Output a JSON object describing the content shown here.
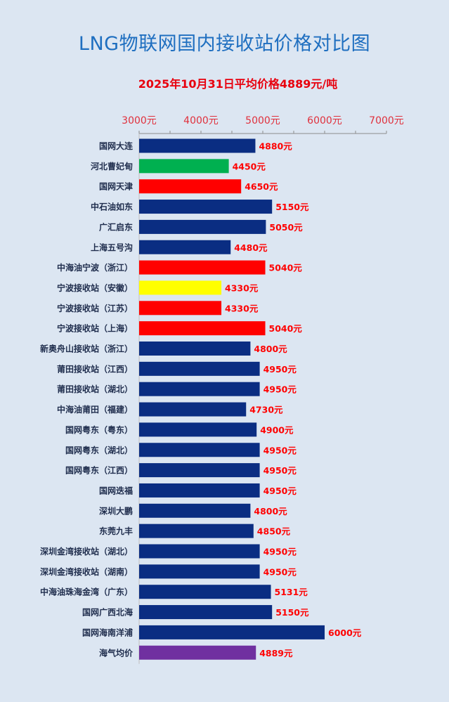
{
  "chart_data": {
    "type": "bar",
    "orientation": "horizontal",
    "title": "LNG物联网国内接收站价格对比图",
    "subtitle": "2025年10月31日平均价格4889元/吨",
    "xlim": [
      3000,
      7000
    ],
    "tick_labels": [
      "3000元",
      "4000元",
      "5000元",
      "6000元",
      "7000元"
    ],
    "ticks": [
      3000,
      4000,
      5000,
      6000,
      7000
    ],
    "value_suffix": "元",
    "categories": [
      "国网大连",
      "河北曹妃甸",
      "国网天津",
      "中石油如东",
      "广汇启东",
      "上海五号沟",
      "中海油宁波（浙江）",
      "宁波接收站（安徽）",
      "宁波接收站（江苏）",
      "宁波接收站（上海）",
      "新奥舟山接收站（浙江）",
      "莆田接收站（江西）",
      "莆田接收站（湖北）",
      "中海油莆田（福建）",
      "国网粤东（粤东）",
      "国网粤东（湖北）",
      "国网粤东（江西）",
      "国网迭福",
      "深圳大鹏",
      "东莞九丰",
      "深圳金湾接收站（湖北）",
      "深圳金湾接收站（湖南）",
      "中海油珠海金湾（广东）",
      "国网广西北海",
      "国网海南洋浦",
      "海气均价"
    ],
    "values": [
      4880,
      4450,
      4650,
      5150,
      5050,
      4480,
      5040,
      4330,
      4330,
      5040,
      4800,
      4950,
      4950,
      4730,
      4900,
      4950,
      4950,
      4950,
      4800,
      4850,
      4950,
      4950,
      5131,
      5150,
      6000,
      4889
    ],
    "bar_colors": [
      "#0a2d82",
      "#00b050",
      "#ff0000",
      "#0a2d82",
      "#0a2d82",
      "#0a2d82",
      "#ff0000",
      "#ffff00",
      "#ff0000",
      "#ff0000",
      "#0a2d82",
      "#0a2d82",
      "#0a2d82",
      "#0a2d82",
      "#0a2d82",
      "#0a2d82",
      "#0a2d82",
      "#0a2d82",
      "#0a2d82",
      "#0a2d82",
      "#0a2d82",
      "#0a2d82",
      "#0a2d82",
      "#0a2d82",
      "#0a2d82",
      "#7030a0"
    ],
    "label_color": "#ff0000",
    "category_label_color": "#1f2d4d",
    "tick_label_color": "#e0303c",
    "grid": false,
    "legend": "none"
  }
}
